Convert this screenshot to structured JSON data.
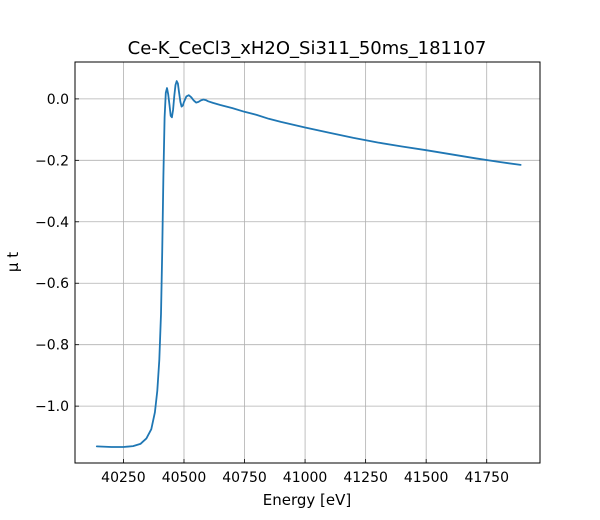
{
  "chart_data": {
    "type": "line",
    "title": "Ce-K_CeCl3_xH2O_Si311_50ms_181107",
    "xlabel": "Energy [eV]",
    "ylabel": "μ t",
    "xlim": [
      40050,
      41970
    ],
    "ylim": [
      -1.185,
      0.12
    ],
    "x_ticks": [
      40250,
      40500,
      40750,
      41000,
      41250,
      41500,
      41750
    ],
    "x_tick_labels": [
      "40250",
      "40500",
      "40750",
      "41000",
      "41250",
      "41500",
      "41750"
    ],
    "y_ticks": [
      0.0,
      -0.2,
      -0.4,
      -0.6,
      -0.8,
      -1.0
    ],
    "y_tick_labels": [
      "0.0",
      "−0.2",
      "−0.4",
      "−0.6",
      "−0.8",
      "−1.0"
    ],
    "grid": true,
    "series": [
      {
        "color": "#1f77b4",
        "x": [
          40140,
          40200,
          40250,
          40290,
          40320,
          40345,
          40365,
          40380,
          40390,
          40398,
          40405,
          40410,
          40415,
          40420,
          40425,
          40430,
          40435,
          40440,
          40445,
          40450,
          40455,
          40460,
          40465,
          40470,
          40475,
          40480,
          40485,
          40490,
          40495,
          40500,
          40510,
          40520,
          40530,
          40540,
          40550,
          40560,
          40570,
          40580,
          40590,
          40600,
          40620,
          40650,
          40700,
          40750,
          40800,
          40850,
          40900,
          41000,
          41100,
          41200,
          41300,
          41400,
          41500,
          41600,
          41700,
          41800,
          41890
        ],
        "y": [
          -1.131,
          -1.133,
          -1.133,
          -1.13,
          -1.123,
          -1.105,
          -1.075,
          -1.02,
          -0.95,
          -0.85,
          -0.7,
          -0.5,
          -0.25,
          -0.06,
          0.02,
          0.035,
          0.015,
          -0.02,
          -0.055,
          -0.06,
          -0.035,
          0.01,
          0.045,
          0.058,
          0.05,
          0.02,
          -0.01,
          -0.025,
          -0.022,
          -0.01,
          0.008,
          0.012,
          0.005,
          -0.005,
          -0.012,
          -0.01,
          -0.005,
          -0.002,
          -0.004,
          -0.008,
          -0.013,
          -0.02,
          -0.03,
          -0.042,
          -0.052,
          -0.065,
          -0.075,
          -0.093,
          -0.11,
          -0.127,
          -0.142,
          -0.155,
          -0.167,
          -0.18,
          -0.193,
          -0.205,
          -0.215
        ]
      }
    ]
  }
}
